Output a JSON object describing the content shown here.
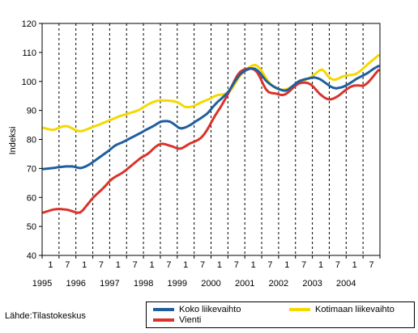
{
  "chart_data": {
    "type": "line",
    "title": "",
    "ylabel": "Indeksi",
    "xlabel": "",
    "ylim": [
      40,
      120
    ],
    "yticks": [
      40,
      50,
      60,
      70,
      80,
      90,
      100,
      110,
      120
    ],
    "x_month_labels": [
      "1",
      "7",
      "1",
      "7",
      "1",
      "7",
      "1",
      "7",
      "1",
      "7",
      "1",
      "7",
      "1",
      "7",
      "1",
      "7",
      "1",
      "7",
      "1",
      "7"
    ],
    "x_year_labels": [
      "1995",
      "1996",
      "1997",
      "1998",
      "1999",
      "2000",
      "2001",
      "2002",
      "2003",
      "2004"
    ],
    "x_start": "1995-01",
    "x_end": "2004-12",
    "grid": "vertical-dashed-at-half-years",
    "legend_position": "bottom-right",
    "series": [
      {
        "name": "Koko liikevaihto",
        "color": "#1f5fa0",
        "values": [
          69.8,
          69.9,
          70.0,
          70.1,
          70.2,
          70.4,
          70.5,
          70.6,
          70.7,
          70.7,
          70.7,
          70.6,
          70.3,
          70.1,
          70.3,
          70.7,
          71.2,
          71.8,
          72.5,
          73.2,
          73.9,
          74.6,
          75.3,
          76.0,
          76.8,
          77.6,
          78.2,
          78.6,
          79.0,
          79.5,
          80.0,
          80.5,
          81.0,
          81.5,
          82.0,
          82.5,
          83.1,
          83.6,
          84.1,
          84.6,
          85.2,
          85.8,
          86.2,
          86.3,
          86.3,
          86.1,
          85.5,
          84.8,
          84.0,
          83.8,
          84.0,
          84.4,
          84.9,
          85.5,
          86.2,
          86.8,
          87.4,
          88.1,
          88.8,
          89.8,
          91.0,
          92.1,
          93.1,
          93.9,
          94.8,
          95.7,
          96.9,
          98.4,
          100.0,
          101.4,
          102.6,
          103.3,
          103.9,
          104.3,
          104.5,
          104.4,
          103.8,
          102.8,
          101.5,
          100.3,
          99.4,
          98.7,
          98.1,
          97.6,
          97.2,
          96.9,
          96.8,
          97.2,
          98.0,
          98.8,
          99.6,
          100.2,
          100.5,
          100.8,
          101.0,
          101.2,
          101.4,
          101.2,
          100.9,
          100.3,
          99.6,
          98.9,
          98.2,
          97.8,
          97.6,
          97.8,
          98.0,
          98.4,
          98.9,
          99.5,
          100.1,
          100.8,
          101.3,
          101.8,
          102.3,
          102.8,
          103.5,
          104.2,
          104.8,
          105.3
        ]
      },
      {
        "name": "Kotimaan liikevaihto",
        "color": "#f5d800",
        "values": [
          84.0,
          83.7,
          83.5,
          83.3,
          83.4,
          83.8,
          84.2,
          84.5,
          84.6,
          84.4,
          83.9,
          83.4,
          83.0,
          82.8,
          83.0,
          83.3,
          83.7,
          84.1,
          84.5,
          84.8,
          85.2,
          85.6,
          86.0,
          86.4,
          86.8,
          87.2,
          87.6,
          88.0,
          88.3,
          88.6,
          88.9,
          89.2,
          89.5,
          89.8,
          90.2,
          90.8,
          91.4,
          92.0,
          92.5,
          92.9,
          93.2,
          93.4,
          93.4,
          93.4,
          93.4,
          93.3,
          93.2,
          93.0,
          92.6,
          92.0,
          91.3,
          91.1,
          91.2,
          91.4,
          91.8,
          92.3,
          92.8,
          93.2,
          93.6,
          94.0,
          94.5,
          95.0,
          95.3,
          95.4,
          95.6,
          95.9,
          96.5,
          97.6,
          99.2,
          100.8,
          102.2,
          103.3,
          104.1,
          104.8,
          105.4,
          105.7,
          105.3,
          104.3,
          102.8,
          101.2,
          99.8,
          98.7,
          98.0,
          97.5,
          97.2,
          97.1,
          97.2,
          97.6,
          98.1,
          98.6,
          99.0,
          99.5,
          100.0,
          100.5,
          101.0,
          101.5,
          102.2,
          103.0,
          103.8,
          104.1,
          103.2,
          101.9,
          101.0,
          100.6,
          100.7,
          101.1,
          101.6,
          101.9,
          102.1,
          102.2,
          102.3,
          102.6,
          103.2,
          104.0,
          104.9,
          105.8,
          106.6,
          107.4,
          108.2,
          109.0
        ]
      },
      {
        "name": "Vienti",
        "color": "#d9342b",
        "values": [
          54.8,
          55.1,
          55.4,
          55.7,
          55.9,
          56.0,
          56.0,
          55.9,
          55.8,
          55.6,
          55.3,
          55.0,
          54.7,
          54.8,
          55.6,
          56.8,
          58.0,
          59.2,
          60.3,
          61.2,
          62.1,
          63.0,
          64.0,
          65.1,
          66.1,
          66.8,
          67.4,
          67.9,
          68.5,
          69.2,
          70.0,
          70.8,
          71.6,
          72.4,
          73.2,
          73.9,
          74.4,
          75.0,
          75.8,
          76.8,
          77.6,
          78.2,
          78.5,
          78.4,
          78.1,
          77.8,
          77.5,
          77.1,
          76.8,
          76.9,
          77.4,
          78.0,
          78.6,
          79.0,
          79.4,
          79.9,
          80.6,
          81.7,
          83.1,
          84.8,
          86.6,
          88.3,
          89.8,
          91.3,
          93.0,
          94.7,
          96.6,
          98.6,
          100.6,
          102.3,
          103.4,
          104.0,
          104.3,
          104.5,
          104.4,
          104.0,
          103.0,
          101.2,
          99.1,
          97.3,
          96.3,
          96.0,
          95.9,
          95.7,
          95.4,
          95.3,
          95.6,
          96.3,
          97.2,
          98.1,
          98.9,
          99.4,
          99.6,
          99.6,
          99.4,
          98.9,
          98.0,
          96.9,
          95.8,
          95.0,
          94.3,
          93.9,
          93.8,
          94.1,
          94.6,
          95.2,
          96.0,
          96.8,
          97.5,
          98.1,
          98.5,
          98.6,
          98.6,
          98.5,
          98.7,
          99.4,
          100.4,
          101.6,
          102.8,
          103.9
        ]
      }
    ]
  },
  "source_text": "Lähde:Tilastokeskus"
}
